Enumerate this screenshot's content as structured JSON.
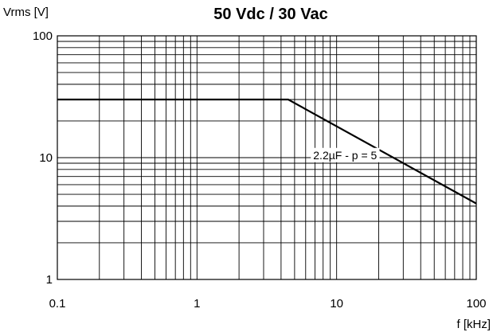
{
  "chart_data": {
    "type": "line",
    "title": "50 Vdc / 30 Vac",
    "xlabel": "f  [kHz]",
    "ylabel": "Vrms [V]",
    "xscale": "log",
    "yscale": "log",
    "xlim": [
      0.1,
      100
    ],
    "ylim": [
      1,
      100
    ],
    "grid": true,
    "x_ticks": [
      {
        "value": 0.1,
        "label": "0.1"
      },
      {
        "value": 1,
        "label": "1"
      },
      {
        "value": 10,
        "label": "10"
      },
      {
        "value": 100,
        "label": "100"
      }
    ],
    "y_ticks": [
      {
        "value": 1,
        "label": "1"
      },
      {
        "value": 10,
        "label": "10"
      },
      {
        "value": 100,
        "label": "100"
      }
    ],
    "series": [
      {
        "x": [
          0.1,
          4.5,
          100
        ],
        "y": [
          30,
          30,
          4.2
        ]
      }
    ],
    "annotations": [
      {
        "text": "2.2µF - p = 5",
        "x": 11.5,
        "y": 10.5
      }
    ]
  }
}
